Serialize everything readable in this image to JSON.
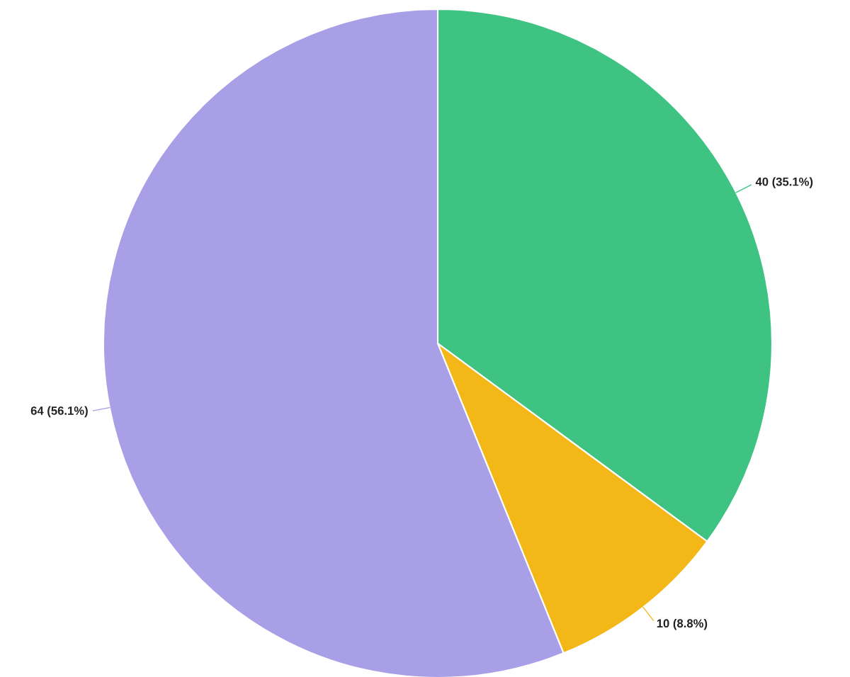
{
  "chart_data": {
    "type": "pie",
    "categories": [
      null,
      null,
      null
    ],
    "values": [
      40,
      10,
      64
    ],
    "colors": [
      "#3ec383",
      "#f3b818",
      "#a89fe6"
    ],
    "value_labels": [
      "40 (35.1%)",
      "10 (8.8%)",
      "64 (56.1%)"
    ]
  }
}
